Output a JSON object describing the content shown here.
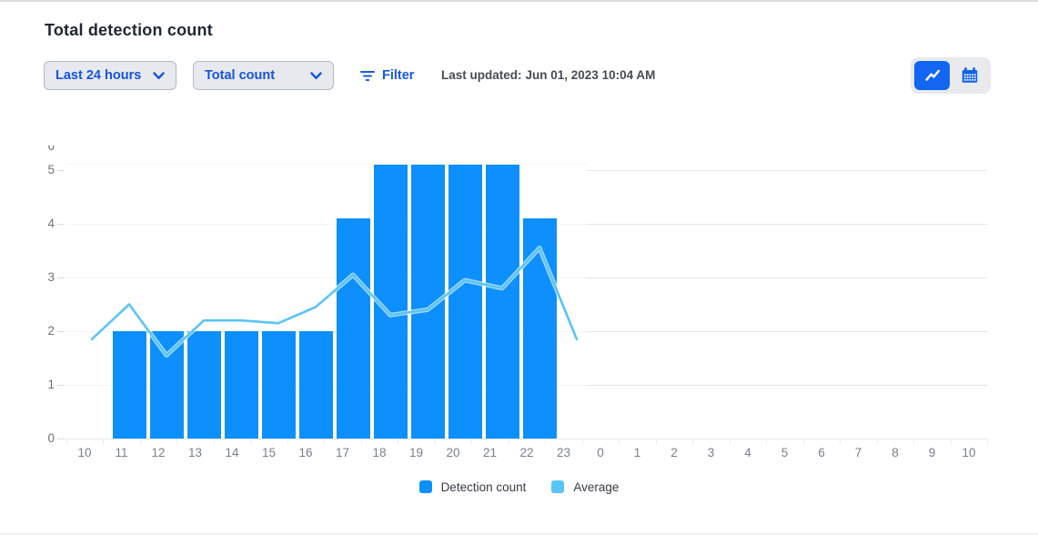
{
  "header": {
    "title": "Total detection count"
  },
  "controls": {
    "time_range": {
      "value": "Last 24 hours"
    },
    "metric": {
      "value": "Total count"
    },
    "filter": {
      "label": "Filter"
    },
    "last_updated": {
      "label": "Last updated:",
      "value": "Jun 01, 2023 10:04 AM"
    },
    "view_toggle": {
      "active": "line-chart",
      "options": [
        "line-chart",
        "calendar"
      ]
    }
  },
  "colors": {
    "bar": "#0d8ffc",
    "line": "#58c5f7",
    "accent_blue": "#1353e0",
    "toggle_active": "#1266f1"
  },
  "legend": {
    "items": [
      {
        "label": "Detection count",
        "color": "#0d8ffc"
      },
      {
        "label": "Average",
        "color": "#58c5f7"
      }
    ]
  },
  "chart_data": {
    "type": "bar",
    "title": "Total detection count",
    "categories": [
      "10",
      "11",
      "12",
      "13",
      "14",
      "15",
      "16",
      "17",
      "18",
      "19",
      "20",
      "21",
      "22",
      "23",
      "0",
      "1",
      "2",
      "3",
      "4",
      "5",
      "6",
      "7",
      "8",
      "9",
      "10"
    ],
    "series": [
      {
        "name": "Detection count",
        "type": "bar",
        "color": "#0d8ffc",
        "values": [
          null,
          2,
          2,
          2,
          2,
          2,
          2,
          4,
          5,
          5,
          5,
          5,
          4,
          null,
          null,
          null,
          null,
          null,
          null,
          null,
          null,
          null,
          null,
          null,
          null
        ]
      },
      {
        "name": "Average",
        "type": "line",
        "color": "#58c5f7",
        "values": [
          1.85,
          2.5,
          1.55,
          2.2,
          2.2,
          2.15,
          2.45,
          3.05,
          2.3,
          2.4,
          2.95,
          2.8,
          3.55,
          1.85,
          null,
          null,
          null,
          null,
          null,
          null,
          null,
          null,
          null,
          null,
          null
        ]
      }
    ],
    "xlabel": "",
    "ylabel": "",
    "ylim": [
      0,
      6
    ],
    "yticks": [
      0,
      1,
      2,
      3,
      4,
      5,
      6
    ],
    "grid": true,
    "legend_position": "bottom"
  }
}
